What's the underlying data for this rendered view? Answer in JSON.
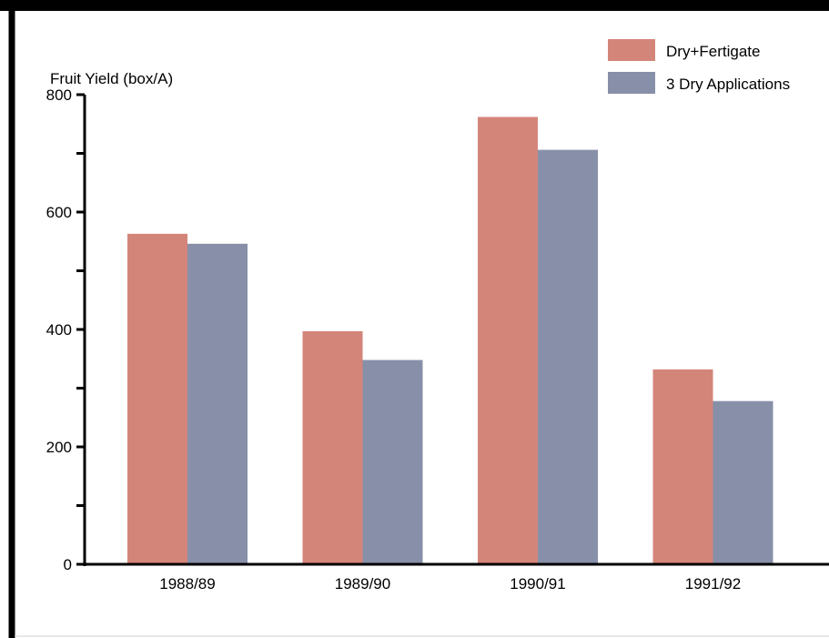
{
  "chart_data": {
    "type": "bar",
    "title": "",
    "xlabel": "",
    "ylabel": "Fruit Yield (box/A)",
    "categories": [
      "1988/89",
      "1989/90",
      "1990/91",
      "1991/92"
    ],
    "series": [
      {
        "name": "Dry+Fertigate",
        "color": "#d4857a",
        "values": [
          563,
          397,
          762,
          332
        ]
      },
      {
        "name": "3 Dry Applications",
        "color": "#8790a8",
        "values": [
          546,
          348,
          706,
          278
        ]
      }
    ],
    "ylim": [
      0,
      800
    ],
    "yticks": [
      0,
      200,
      400,
      600,
      800
    ],
    "y_tick_labels": [
      "0",
      "200",
      "400",
      "600",
      "800"
    ],
    "grid": false,
    "legend_position": "top-right"
  }
}
